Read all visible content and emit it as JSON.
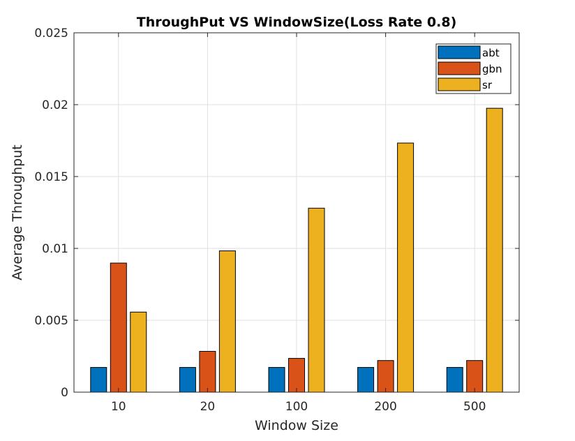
{
  "chart_data": {
    "type": "bar",
    "title": "ThroughPut VS WindowSize(Loss Rate 0.8)",
    "xlabel": "Window Size",
    "ylabel": "Average Throughput",
    "categories": [
      "10",
      "20",
      "100",
      "200",
      "500"
    ],
    "series": [
      {
        "name": "abt",
        "color": "#0072bd",
        "values": [
          0.00172,
          0.00172,
          0.00172,
          0.00172,
          0.00172
        ]
      },
      {
        "name": "gbn",
        "color": "#d95319",
        "values": [
          0.00898,
          0.00284,
          0.00235,
          0.0022,
          0.0022
        ]
      },
      {
        "name": "sr",
        "color": "#edb120",
        "values": [
          0.00557,
          0.00983,
          0.0128,
          0.01733,
          0.01975
        ]
      }
    ],
    "ylim": [
      0,
      0.025
    ],
    "yticks": [
      0,
      0.005,
      0.01,
      0.015,
      0.02,
      0.025
    ],
    "ytick_labels": [
      "0",
      "0.005",
      "0.01",
      "0.015",
      "0.02",
      "0.025"
    ],
    "grid": true,
    "legend_position": "top-right"
  }
}
